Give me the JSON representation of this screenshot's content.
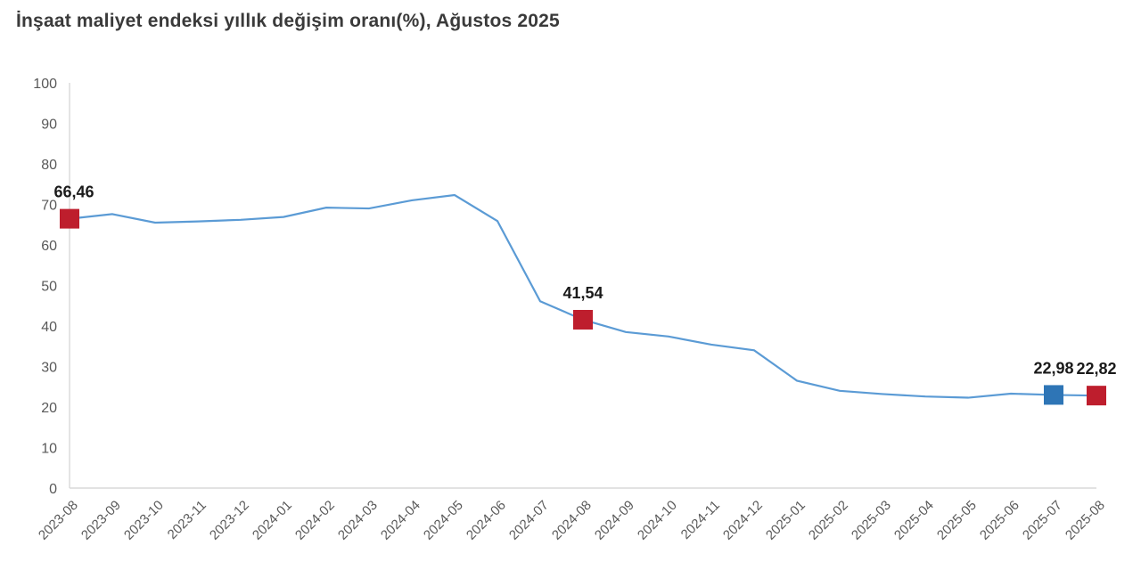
{
  "title": "İnşaat maliyet endeksi yıllık değişim oranı(%), Ağustos 2025",
  "chart_data": {
    "type": "line",
    "title": "İnşaat maliyet endeksi yıllık değişim oranı(%), Ağustos 2025",
    "categories": [
      "2023-08",
      "2023-09",
      "2023-10",
      "2023-11",
      "2023-12",
      "2024-01",
      "2024-02",
      "2024-03",
      "2024-04",
      "2024-05",
      "2024-06",
      "2024-07",
      "2024-08",
      "2024-09",
      "2024-10",
      "2024-11",
      "2024-12",
      "2025-01",
      "2025-02",
      "2025-03",
      "2025-04",
      "2025-05",
      "2025-06",
      "2025-07",
      "2025-08"
    ],
    "series": [
      {
        "name": "Yıllık değişim oranı (%)",
        "values": [
          66.46,
          67.6,
          65.5,
          65.8,
          66.2,
          66.9,
          69.2,
          69.0,
          71.0,
          72.3,
          65.9,
          46.1,
          41.54,
          38.5,
          37.4,
          35.4,
          34.0,
          26.5,
          24.0,
          23.2,
          22.6,
          22.3,
          23.3,
          22.98,
          22.82
        ]
      }
    ],
    "xlabel": "",
    "ylabel": "",
    "ylim": [
      0,
      100
    ],
    "yticks": [
      0,
      10,
      20,
      30,
      40,
      50,
      60,
      70,
      80,
      90,
      100
    ],
    "grid": false,
    "legend_position": "none",
    "annotations": [
      {
        "category": "2023-08",
        "index": 0,
        "value": 66.46,
        "label": "66,46",
        "marker_color": "#be1e2d"
      },
      {
        "category": "2024-08",
        "index": 12,
        "value": 41.54,
        "label": "41,54",
        "marker_color": "#be1e2d"
      },
      {
        "category": "2025-07",
        "index": 23,
        "value": 22.98,
        "label": "22,98",
        "marker_color": "#2e75b6"
      },
      {
        "category": "2025-08",
        "index": 24,
        "value": 22.82,
        "label": "22,82",
        "marker_color": "#be1e2d"
      }
    ],
    "colors": {
      "line": "#5b9bd5",
      "axis": "#d9d9d9",
      "tick_label": "#595959",
      "annotation_label": "#1a1a1a",
      "title": "#3a3a3a",
      "background": "#ffffff"
    }
  }
}
